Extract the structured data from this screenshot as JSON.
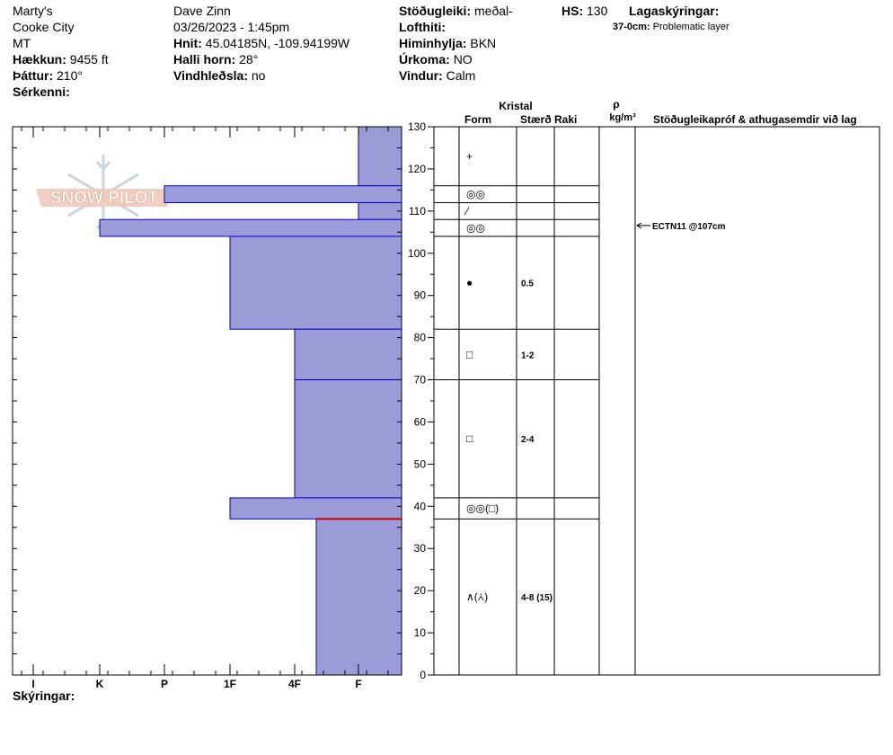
{
  "header": {
    "location": "Marty's",
    "range": "Cooke City",
    "state": "MT",
    "elevation_label": "Hækkun:",
    "elevation": "9455 ft",
    "aspect_label": "Þáttur:",
    "aspect": "210°",
    "features_label": "Sérkenni:",
    "observer": "Dave Zinn",
    "datetime": "03/26/2023 - 1:45pm",
    "coords_label": "Hnit:",
    "coords": "45.04185N, -109.94199W",
    "slope_label": "Halli horn:",
    "slope": "28°",
    "windload_label": "Vindhleðsla:",
    "windload": "no",
    "stability_label": "Stöðugleiki:",
    "stability": "meðal-",
    "airtemp_label": "Lofthiti:",
    "sky_label": "Himinhylja:",
    "sky": "BKN",
    "precip_label": "Úrkoma:",
    "precip": "NO",
    "wind_label": "Vindur:",
    "wind": "Calm",
    "hs_label": "HS:",
    "hs": "130",
    "layer_notes_label": "Lagaskýringar:",
    "layer_note_range": "37-0cm:",
    "layer_note_text": "Problematic layer",
    "notes_label": "Skýringar:"
  },
  "logo_text": "SNOW PILOT",
  "columns": {
    "crystal": "Kristal",
    "form": "Form",
    "size": "Stærð",
    "moisture": "Raki",
    "rho": "ρ",
    "density_unit": "kg/m³",
    "stability_tests": "Stöðugleikapróf & athugasemdir við lag"
  },
  "colors": {
    "layer_fill": "#9b9bd7",
    "layer_stroke": "#0000cc",
    "problem_line": "#cc0000"
  },
  "chart_data": {
    "type": "bar",
    "ylim": [
      0,
      130
    ],
    "y_ticks": [
      0,
      10,
      20,
      30,
      40,
      50,
      60,
      70,
      80,
      90,
      100,
      110,
      120,
      130
    ],
    "hardness_scale": [
      "I",
      "K",
      "P",
      "1F",
      "4F",
      "F"
    ],
    "layers": [
      {
        "top": 130,
        "bottom": 116,
        "hardness": "F",
        "form": "+",
        "size": ""
      },
      {
        "top": 116,
        "bottom": 112,
        "hardness": "P",
        "form": "◎◎",
        "size": ""
      },
      {
        "top": 112,
        "bottom": 108,
        "hardness": "F",
        "form": "⁄",
        "size": ""
      },
      {
        "top": 108,
        "bottom": 104,
        "hardness": "K",
        "form": "◎◎",
        "size": ""
      },
      {
        "top": 104,
        "bottom": 82,
        "hardness": "1F",
        "form": "●",
        "size": "0.5"
      },
      {
        "top": 82,
        "bottom": 70,
        "hardness": "4F",
        "form": "□",
        "size": "1-2"
      },
      {
        "top": 70,
        "bottom": 42,
        "hardness": "4F",
        "form": "□",
        "size": "2-4"
      },
      {
        "top": 42,
        "bottom": 37,
        "hardness": "1F",
        "form": "◎◎(□)",
        "size": ""
      },
      {
        "top": 37,
        "bottom": 0,
        "hardness": "4F-",
        "form": "∧(⩑)",
        "size": "4-8 (15)"
      }
    ],
    "tests": [
      {
        "depth": 107,
        "label": "ECTN11 @107cm"
      }
    ],
    "problem_layer_depth": 37
  }
}
